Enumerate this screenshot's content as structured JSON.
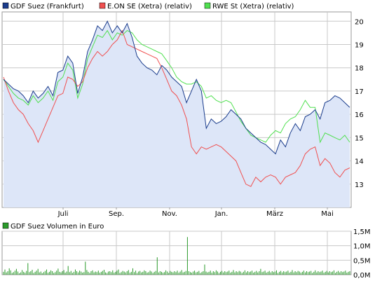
{
  "chart_data": [
    {
      "type": "line",
      "legend": [
        {
          "name": "GDF Suez (Frankfurt)",
          "color": "#1a3c8c"
        },
        {
          "name": "E.ON SE (Xetra) (relativ)",
          "color": "#f05050"
        },
        {
          "name": "RWE St (Xetra) (relativ)",
          "color": "#50e050"
        }
      ],
      "fill_color": "#dde6f8",
      "x_ticks": [
        "Juli",
        "Sep.",
        "Nov.",
        "Jan.",
        "März",
        "Mai"
      ],
      "y_ticks": [
        13,
        14,
        15,
        16,
        17,
        18,
        19,
        20
      ],
      "ylim": [
        12.0,
        20.4
      ],
      "grid": true,
      "legend_position": "top",
      "series": [
        {
          "name": "GDF Suez (Frankfurt)",
          "values": [
            17.5,
            17.3,
            17.1,
            17.0,
            16.8,
            16.5,
            17.0,
            16.7,
            16.9,
            17.2,
            16.8,
            17.8,
            17.9,
            18.5,
            18.2,
            16.9,
            17.6,
            18.7,
            19.2,
            19.8,
            19.6,
            20.0,
            19.5,
            19.8,
            19.5,
            19.9,
            19.3,
            18.5,
            18.2,
            18.0,
            17.9,
            17.7,
            18.1,
            17.9,
            17.6,
            17.4,
            17.2,
            16.5,
            17.0,
            17.5,
            17.0,
            15.4,
            15.8,
            15.6,
            15.7,
            15.9,
            16.2,
            16.0,
            15.8,
            15.4,
            15.2,
            15.0,
            14.8,
            14.7,
            14.5,
            14.3,
            14.9,
            14.6,
            15.2,
            15.6,
            15.3,
            15.9,
            16.0,
            16.2,
            15.8,
            16.5,
            16.6,
            16.8,
            16.7,
            16.5,
            16.3
          ],
          "color": "#1a3c8c"
        },
        {
          "name": "E.ON SE (Xetra) (relativ)",
          "values": [
            17.6,
            17.0,
            16.5,
            16.2,
            16.0,
            15.6,
            15.3,
            14.8,
            15.3,
            15.8,
            16.3,
            16.8,
            16.9,
            17.6,
            17.5,
            17.2,
            17.4,
            18.0,
            18.4,
            18.7,
            18.5,
            18.7,
            19.0,
            19.2,
            19.6,
            19.0,
            18.9,
            18.8,
            18.7,
            18.6,
            18.5,
            18.4,
            18.0,
            17.5,
            17.0,
            16.8,
            16.4,
            15.8,
            14.6,
            14.3,
            14.6,
            14.5,
            14.6,
            14.7,
            14.6,
            14.4,
            14.2,
            14.0,
            13.5,
            13.0,
            12.9,
            13.3,
            13.1,
            13.3,
            13.4,
            13.3,
            13.0,
            13.3,
            13.4,
            13.5,
            13.8,
            14.3,
            14.5,
            14.6,
            13.8,
            14.1,
            13.9,
            13.5,
            13.3,
            13.6,
            13.7
          ],
          "color": "#f05050"
        },
        {
          "name": "RWE St (Xetra) (relativ)",
          "values": [
            17.5,
            17.2,
            16.9,
            16.7,
            16.6,
            16.4,
            16.8,
            16.5,
            16.7,
            17.0,
            16.6,
            17.4,
            17.6,
            18.2,
            17.9,
            16.7,
            17.3,
            18.4,
            18.9,
            19.4,
            19.3,
            19.6,
            19.2,
            19.5,
            19.4,
            19.6,
            19.5,
            19.2,
            19.0,
            18.9,
            18.8,
            18.7,
            18.6,
            18.3,
            18.0,
            17.6,
            17.4,
            17.3,
            17.3,
            17.4,
            17.2,
            16.7,
            16.8,
            16.6,
            16.5,
            16.6,
            16.5,
            16.1,
            15.7,
            15.4,
            15.1,
            15.0,
            14.9,
            14.8,
            15.1,
            15.3,
            15.2,
            15.6,
            15.8,
            15.9,
            16.2,
            16.6,
            16.3,
            16.3,
            14.8,
            15.2,
            15.1,
            15.0,
            14.9,
            15.1,
            14.8
          ],
          "color": "#50e050"
        }
      ]
    },
    {
      "type": "bar",
      "legend": [
        {
          "name": "GDF Suez Volumen in Euro",
          "color": "#2a9a2a"
        }
      ],
      "y_ticks": [
        "0,0M",
        "0,5M",
        "1,0M",
        "1,5M"
      ],
      "ylim": [
        0,
        1.5
      ],
      "values": [
        0.1,
        0.18,
        0.08,
        0.12,
        0.22,
        0.15,
        0.06,
        0.09,
        0.14,
        0.2,
        0.11,
        0.05,
        0.08,
        0.16,
        0.1,
        0.07,
        0.13,
        0.4,
        0.09,
        0.12,
        0.17,
        0.06,
        0.1,
        0.14,
        0.2,
        0.08,
        0.11,
        0.05,
        0.09,
        0.13,
        0.18,
        0.07,
        0.1,
        0.15,
        0.12,
        0.06,
        0.09,
        0.14,
        0.21,
        0.1,
        0.08,
        0.12,
        0.16,
        0.07,
        0.11,
        0.3,
        0.09,
        0.13,
        0.06,
        0.1,
        0.18,
        0.12,
        0.08,
        0.14,
        0.11,
        0.07,
        0.09,
        0.45,
        0.16,
        0.1,
        0.06,
        0.12,
        0.15,
        0.08,
        0.11,
        0.09,
        0.14,
        0.07,
        0.1,
        0.13,
        0.17,
        0.08,
        0.06,
        0.11,
        0.12,
        0.09,
        0.15,
        0.07,
        0.1,
        0.14,
        0.18,
        0.06,
        0.09,
        0.13,
        0.11,
        0.08,
        0.12,
        0.16,
        0.07,
        0.1,
        0.22,
        0.09,
        0.14,
        0.06,
        0.11,
        0.13,
        0.08,
        0.1,
        0.15,
        0.12,
        0.07,
        0.09,
        0.14,
        0.11,
        0.06,
        0.1,
        0.13,
        0.6,
        0.08,
        0.12,
        0.1,
        0.07,
        0.09,
        0.15,
        0.11,
        0.06,
        0.13,
        0.1,
        0.08,
        0.12,
        0.09,
        0.14,
        0.07,
        0.11,
        0.16,
        0.08,
        0.1,
        0.13,
        1.3,
        0.12,
        0.09,
        0.07,
        0.11,
        0.14,
        0.08,
        0.1,
        0.13,
        0.06,
        0.09,
        0.12,
        0.35,
        0.11,
        0.08,
        0.1,
        0.14,
        0.07,
        0.12,
        0.09,
        0.15,
        0.11,
        0.06,
        0.1,
        0.13,
        0.08,
        0.12,
        0.09,
        0.11,
        0.14,
        0.07,
        0.1,
        0.16,
        0.08,
        0.12,
        0.09,
        0.13,
        0.11,
        0.06,
        0.1,
        0.15,
        0.08,
        0.12,
        0.09,
        0.11,
        0.14,
        0.07,
        0.1,
        0.13,
        0.08,
        0.12,
        0.2,
        0.09,
        0.11,
        0.14,
        0.07,
        0.1,
        0.13,
        0.08,
        0.12,
        0.09,
        0.11,
        0.15,
        0.06,
        0.1,
        0.13,
        0.08,
        0.12,
        0.09,
        0.11,
        0.14,
        0.07,
        0.1,
        0.16,
        0.08,
        0.12,
        0.09,
        0.13,
        0.11,
        0.07,
        0.1,
        0.14,
        0.08,
        0.12,
        0.09,
        0.11,
        0.13,
        0.06,
        0.1,
        0.15,
        0.08,
        0.12,
        0.09,
        0.11,
        0.14,
        0.07,
        0.1,
        0.13,
        0.08,
        0.12,
        0.09,
        0.11,
        0.15,
        0.06,
        0.1,
        0.13,
        0.08,
        0.12,
        0.09,
        0.11,
        0.14,
        0.07,
        0.1,
        0.12
      ]
    }
  ]
}
